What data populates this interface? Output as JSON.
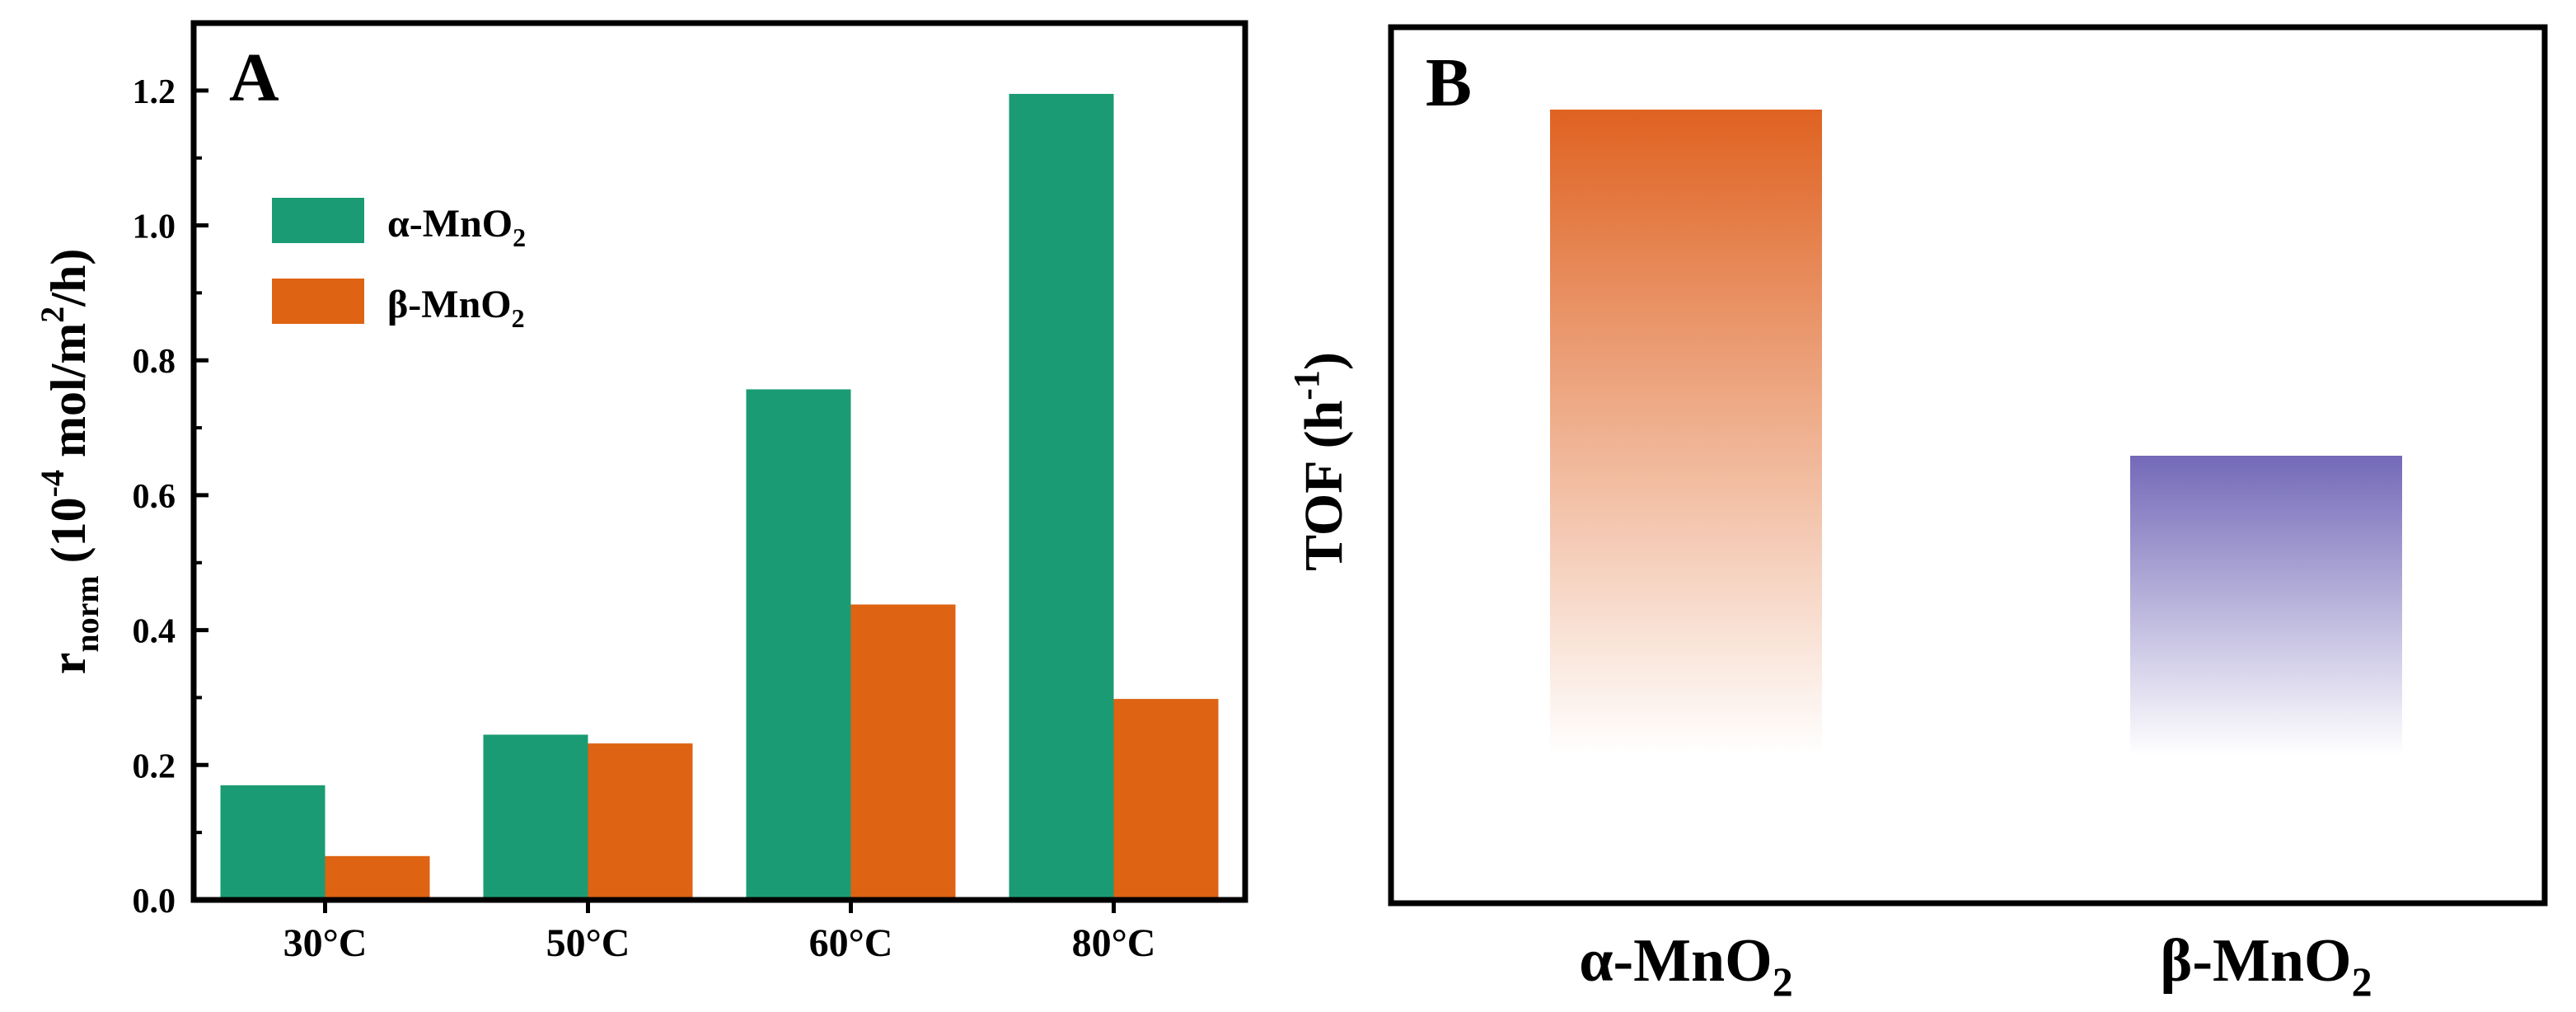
{
  "chart_data": [
    {
      "panel": "A",
      "type": "bar",
      "categories": [
        "30°C",
        "50°C",
        "60°C",
        "80°C"
      ],
      "series": [
        {
          "name": "α-MnO",
          "subscript": "2",
          "color": "#1b9b73",
          "values": [
            0.17,
            0.245,
            0.757,
            1.195
          ]
        },
        {
          "name": "β-MnO",
          "subscript": "2",
          "color": "#de6312",
          "values": [
            0.065,
            0.232,
            0.438,
            0.298
          ]
        }
      ],
      "ylabel": {
        "r": "r",
        "sub": "norm",
        "pre": " (10",
        "exp": "-4",
        "mid": " mol/m",
        "exp2": "2",
        "post": "/h)"
      },
      "ylim": [
        0,
        1.3
      ],
      "yticks": [
        0.0,
        0.2,
        0.4,
        0.6,
        0.8,
        1.0,
        1.2
      ],
      "ytick_labels": [
        "0.0",
        "0.2",
        "0.4",
        "0.6",
        "0.8",
        "1.0",
        "1.2"
      ],
      "legend_position": "upper-left"
    },
    {
      "panel": "B",
      "type": "bar",
      "categories": [
        {
          "base": "α-MnO",
          "sub": "2"
        },
        {
          "base": "β-MnO",
          "sub": "2"
        }
      ],
      "values": [
        1.0,
        0.3
      ],
      "colors": [
        "#df6221",
        "#7369b8"
      ],
      "ylabel": {
        "base": "TOF (h",
        "exp": "-1",
        "post": ")"
      },
      "yticks": "none"
    }
  ]
}
